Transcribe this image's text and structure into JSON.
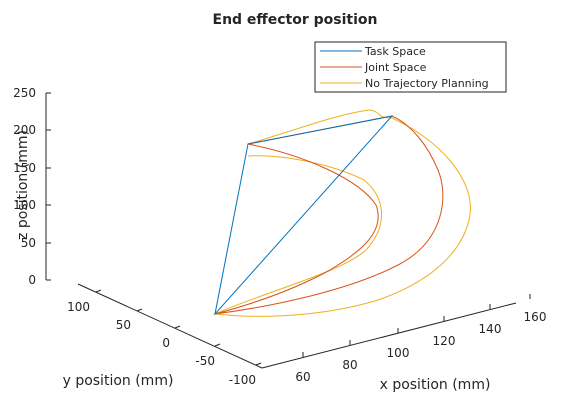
{
  "chart_data": {
    "type": "line",
    "title": "End effector position",
    "xlabel": "x position (mm)",
    "ylabel": "y position (mm)",
    "zlabel": "z position (mm)",
    "xlim": [
      50,
      165
    ],
    "ylim": [
      -100,
      120
    ],
    "zlim": [
      0,
      250
    ],
    "x_ticks": [
      60,
      80,
      100,
      120,
      140,
      160
    ],
    "y_ticks": [
      100,
      50,
      0,
      -50,
      -100
    ],
    "z_ticks": [
      0,
      50,
      100,
      150,
      200,
      250
    ],
    "grid": false,
    "legend_position": "top-right",
    "series": [
      {
        "name": "Task Space",
        "color": "#0072BD"
      },
      {
        "name": "Joint Space",
        "color": "#D95319"
      },
      {
        "name": "No Trajectory Planning",
        "color": "#EDB120"
      }
    ]
  }
}
